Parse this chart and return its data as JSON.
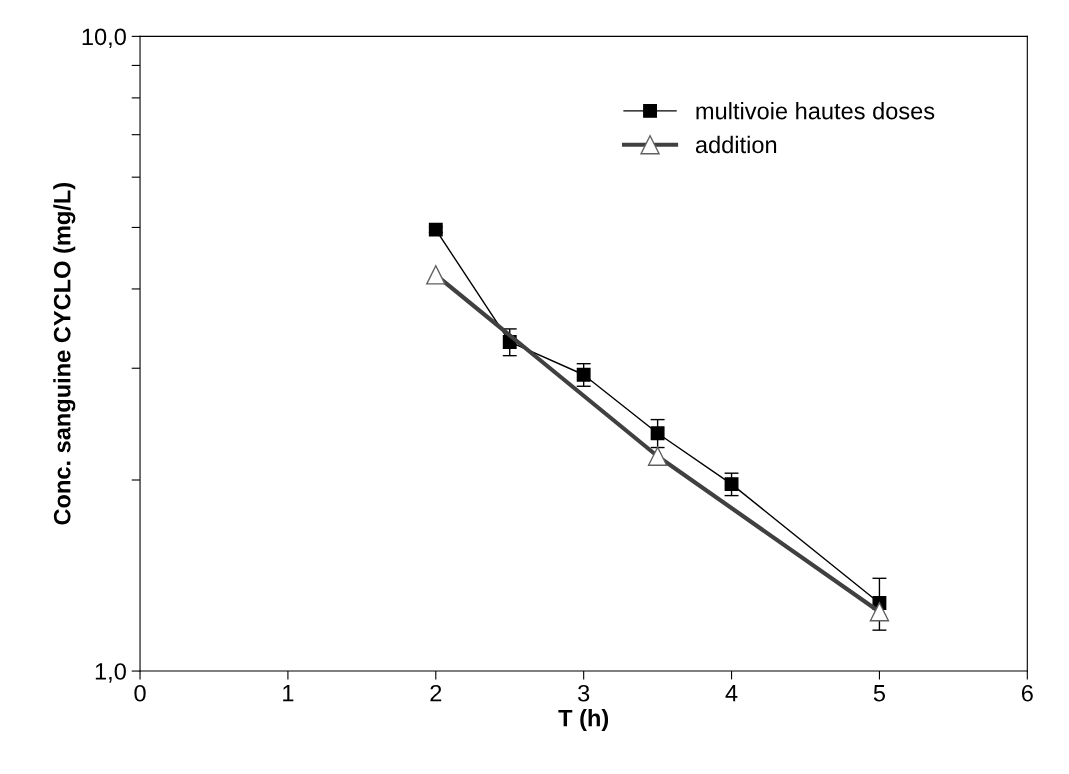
{
  "chart_data": {
    "type": "line",
    "xlabel": "T (h)",
    "ylabel": "Conc. sanguine CYCLO (mg/L)",
    "log": "y",
    "grid": false,
    "legend": "top right",
    "xlim": [
      0,
      6
    ],
    "xticks": [
      0,
      1,
      2,
      3,
      4,
      5,
      6
    ],
    "ylim": [
      1,
      10
    ],
    "yticks": [
      {
        "value": 1,
        "label": "1,0"
      },
      {
        "value": 2,
        "label": null
      },
      {
        "value": 3,
        "label": null
      },
      {
        "value": 4,
        "label": null
      },
      {
        "value": 5,
        "label": null
      },
      {
        "value": 6,
        "label": null
      },
      {
        "value": 7,
        "label": null
      },
      {
        "value": 8,
        "label": null
      },
      {
        "value": 9,
        "label": null
      },
      {
        "value": 10,
        "label": "10,0"
      }
    ],
    "series": [
      {
        "name": "multivoie hautes doses",
        "color": "#000000",
        "marker": "square",
        "x": [
          2,
          2.5,
          3,
          3.5,
          4,
          5
        ],
        "values": [
          4.96,
          3.3,
          2.93,
          2.37,
          1.97,
          1.28
        ],
        "errors": [
          0.05,
          0.16,
          0.12,
          0.12,
          0.08,
          0.12
        ]
      },
      {
        "name": "addition",
        "color": "#404040",
        "marker": "triangle",
        "x": [
          2,
          3.5,
          5
        ],
        "values": [
          4.21,
          2.18,
          1.24
        ]
      }
    ]
  }
}
